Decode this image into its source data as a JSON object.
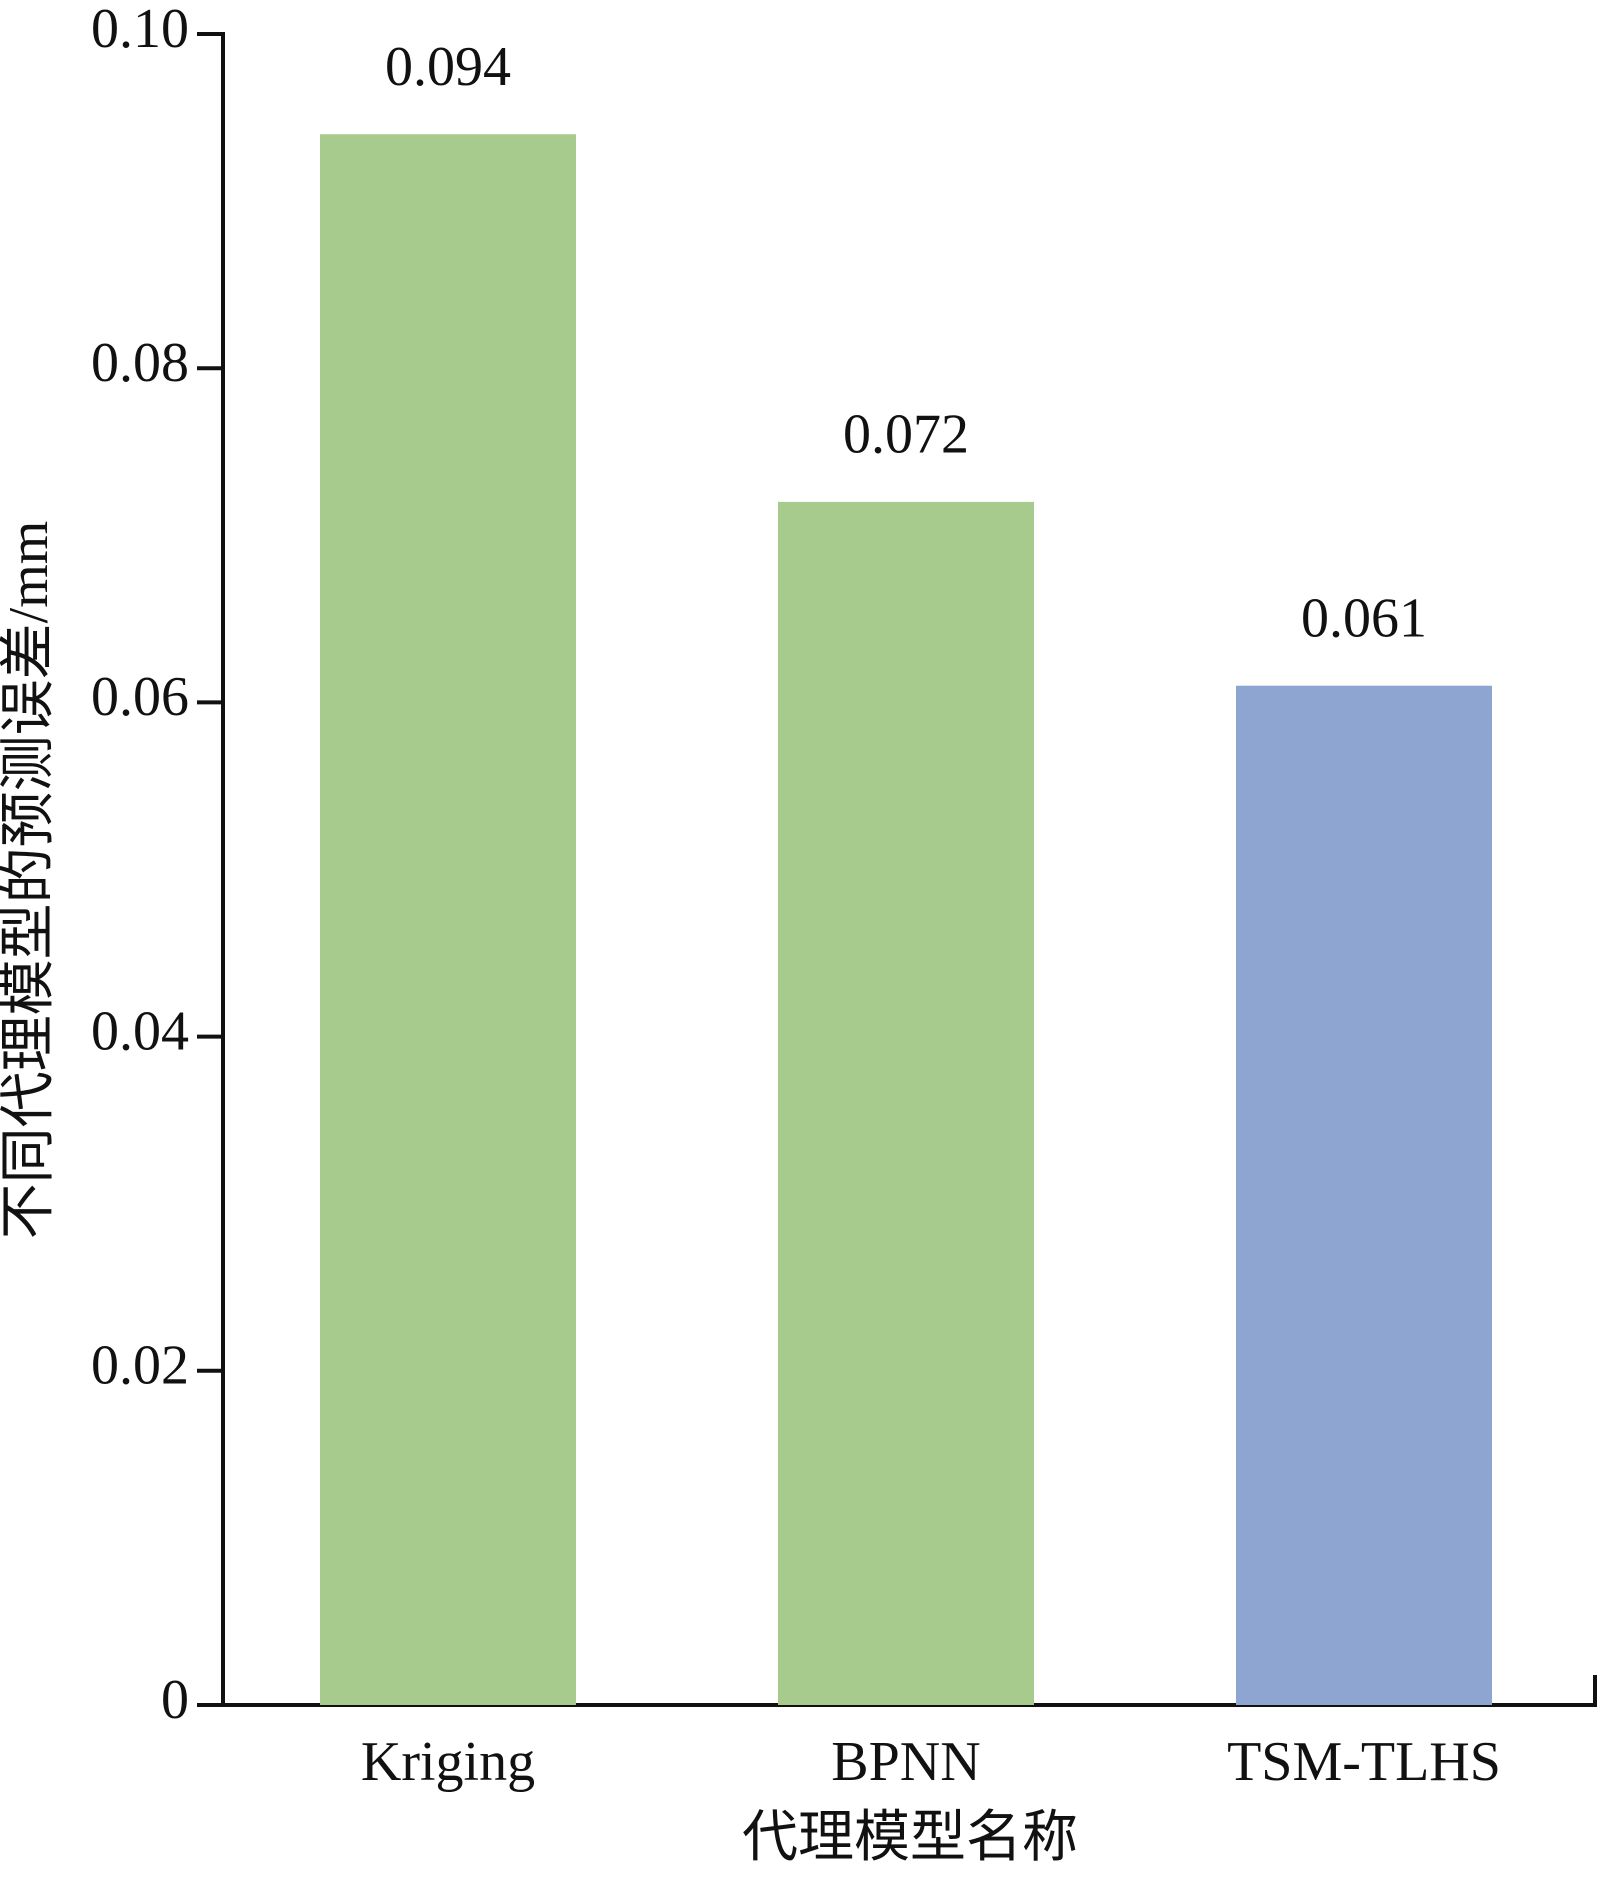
{
  "chart_data": {
    "type": "bar",
    "x_label": "代理模型名称",
    "y_label": "不同代理模型的预测误差/mm",
    "categories": [
      "Kriging",
      "BPNN",
      "TSM-TLHS"
    ],
    "values": [
      0.094,
      0.072,
      0.061
    ],
    "colors": [
      "#a7cb8c",
      "#a7cb8c",
      "#8ea5d1"
    ],
    "ylim": [
      0,
      0.1
    ],
    "yticks": [
      0,
      0.02,
      0.04,
      0.06,
      0.08,
      {
        "value": 0.1,
        "label": "0.10"
      }
    ],
    "grid": false
  }
}
